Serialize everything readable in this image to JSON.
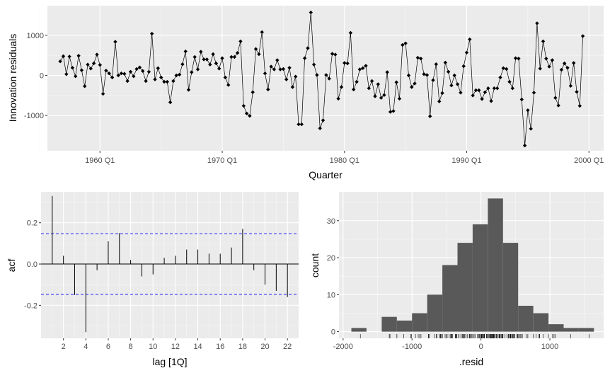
{
  "chart_data": [
    {
      "type": "line",
      "title": "",
      "xlabel": "Quarter",
      "ylabel": "Innovation residuals",
      "x_ticks": [
        "1960 Q1",
        "1970 Q1",
        "1980 Q1",
        "1990 Q1",
        "2000 Q1"
      ],
      "x_tick_years": [
        1960,
        1970,
        1980,
        1990,
        2000
      ],
      "xlim": [
        1955.7,
        2001.2
      ],
      "y_ticks": [
        "-1000",
        "0",
        "1000"
      ],
      "y_tick_values": [
        -1000,
        0,
        1000
      ],
      "ylim": [
        -1880,
        1740
      ],
      "start_year": 1956.75,
      "step": 0.25,
      "series": [
        {
          "name": "Innovation residuals",
          "values": [
            350,
            480,
            30,
            470,
            190,
            -20,
            490,
            130,
            -270,
            270,
            170,
            300,
            520,
            260,
            -460,
            120,
            50,
            -50,
            840,
            0,
            50,
            40,
            -140,
            90,
            -20,
            160,
            200,
            110,
            -140,
            90,
            1040,
            -100,
            180,
            -50,
            -160,
            -160,
            -670,
            -140,
            0,
            20,
            280,
            600,
            -360,
            80,
            460,
            150,
            590,
            400,
            400,
            270,
            530,
            300,
            170,
            430,
            -50,
            -240,
            460,
            460,
            560,
            850,
            -760,
            -950,
            -1010,
            -420,
            660,
            530,
            1080,
            50,
            -350,
            220,
            150,
            380,
            150,
            160,
            -100,
            190,
            -290,
            -30,
            -1220,
            -1220,
            430,
            680,
            1570,
            270,
            10,
            -1320,
            -1120,
            10,
            -80,
            540,
            520,
            -580,
            -290,
            310,
            300,
            1060,
            -350,
            -160,
            150,
            180,
            240,
            -320,
            -140,
            -520,
            -220,
            -560,
            -490,
            80,
            -910,
            -890,
            -170,
            -580,
            760,
            800,
            0,
            -290,
            -200,
            440,
            420,
            30,
            10,
            -1020,
            -120,
            280,
            -650,
            -440,
            320,
            90,
            -250,
            0,
            -220,
            -430,
            230,
            570,
            900,
            -500,
            -370,
            -370,
            -590,
            -420,
            -320,
            -640,
            -320,
            -320,
            -50,
            180,
            160,
            -160,
            -320,
            430,
            420,
            -600,
            -1750,
            -870,
            -1330,
            -430,
            1300,
            170,
            850,
            420,
            220,
            380,
            -560,
            -750,
            140,
            300,
            190,
            -260,
            310,
            -410,
            -760,
            980
          ]
        }
      ]
    },
    {
      "type": "bar",
      "title": "",
      "xlabel": "lag [1Q]",
      "ylabel": "acf",
      "lags": [
        1,
        2,
        3,
        4,
        5,
        6,
        7,
        8,
        9,
        10,
        11,
        12,
        13,
        14,
        15,
        16,
        17,
        18,
        19,
        20,
        21,
        22
      ],
      "values": [
        0.33,
        0.04,
        -0.15,
        -0.33,
        -0.03,
        0.11,
        0.15,
        0.02,
        -0.06,
        -0.05,
        0.03,
        0.04,
        0.07,
        0.07,
        0.05,
        0.05,
        0.08,
        0.17,
        -0.03,
        -0.1,
        -0.13,
        -0.16
      ],
      "confidence_bound": 0.147,
      "x_ticks": [
        "2",
        "4",
        "6",
        "8",
        "10",
        "12",
        "14",
        "16",
        "18",
        "20",
        "22"
      ],
      "x_tick_values": [
        2,
        4,
        6,
        8,
        10,
        12,
        14,
        16,
        18,
        20,
        22
      ],
      "xlim": [
        0,
        23
      ],
      "y_ticks": [
        "-0.2",
        "0.0",
        "0.2"
      ],
      "y_tick_values": [
        -0.2,
        0.0,
        0.2
      ],
      "ylim": [
        -0.36,
        0.35
      ]
    },
    {
      "type": "histogram",
      "title": "",
      "xlabel": ".resid",
      "ylabel": "count",
      "bin_edges": [
        -1880,
        -1660,
        -1440,
        -1220,
        -1000,
        -780,
        -560,
        -340,
        -120,
        100,
        320,
        540,
        760,
        980,
        1200,
        1420,
        1640
      ],
      "counts": [
        1,
        0,
        4,
        3,
        5,
        10,
        18,
        24,
        29,
        36,
        24,
        7,
        5,
        2,
        1,
        1
      ],
      "x_ticks": [
        "-2000",
        "-1000",
        "0",
        "1000"
      ],
      "x_tick_values": [
        -2000,
        -1000,
        0,
        1000
      ],
      "xlim": [
        -2060,
        1780
      ],
      "y_ticks": [
        "0",
        "10",
        "20",
        "30"
      ],
      "y_tick_values": [
        0,
        10,
        20,
        30
      ],
      "ylim": [
        -1.8,
        37.8
      ]
    }
  ]
}
